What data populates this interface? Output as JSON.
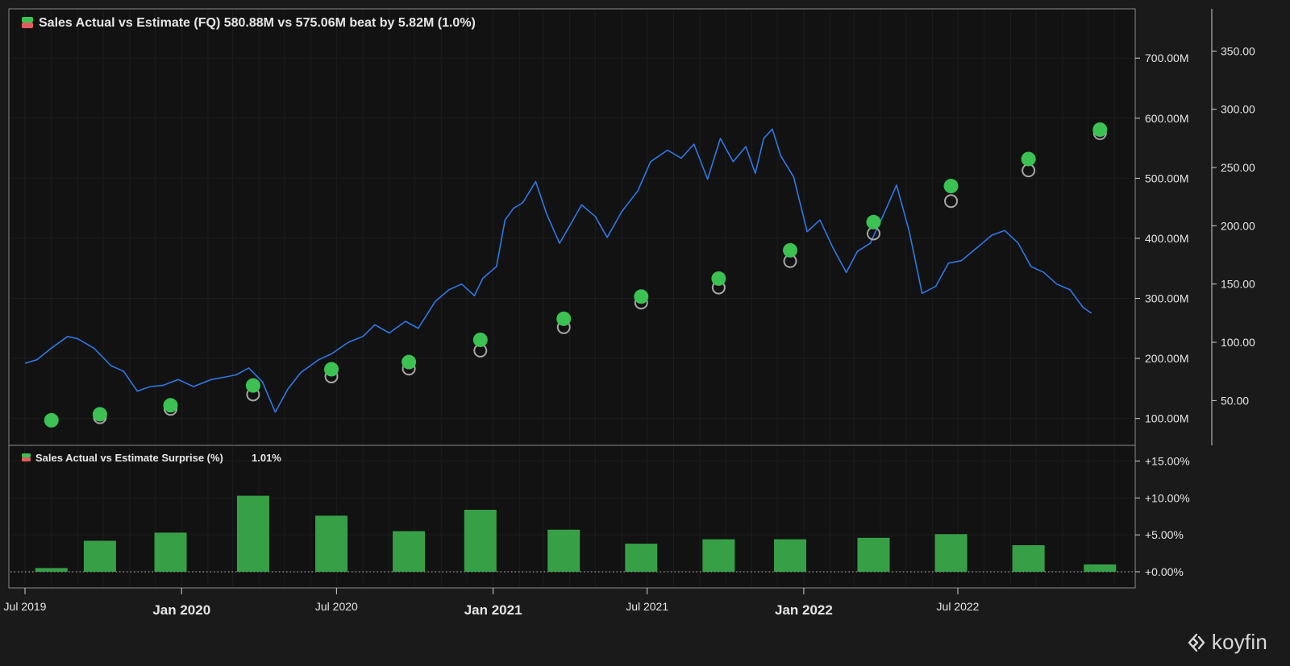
{
  "chart_data": [
    {
      "type": "line",
      "legend_title": "Sales Actual vs Estimate (FQ) 580.88M vs 575.06M beat by 5.82M (1.0%)",
      "sales_axis": {
        "ticks": [
          100,
          200,
          300,
          400,
          500,
          600,
          700
        ],
        "tick_labels": [
          "100.00M",
          "200.00M",
          "300.00M",
          "400.00M",
          "500.00M",
          "600.00M",
          "700.00M"
        ],
        "range": [
          62,
          770
        ]
      },
      "price_axis": {
        "ticks": [
          50,
          100,
          150,
          200,
          250,
          300,
          350
        ],
        "tick_labels": [
          "50.00",
          "100.00",
          "150.00",
          "200.00",
          "250.00",
          "300.00",
          "350.00"
        ],
        "range": [
          15,
          380
        ]
      },
      "x_axis": {
        "labels": [
          "Jul 2019",
          "Jan 2020",
          "Jul 2020",
          "Jan 2021",
          "Jul 2021",
          "Jan 2022",
          "Jul 2022"
        ],
        "bold_labels": [
          "Jan 2020",
          "Jan 2021",
          "Jan 2022"
        ]
      },
      "series": [
        {
          "kind": "price",
          "color": "#2f78e6",
          "points": [
            [
              "2019-07-01",
              82
            ],
            [
              "2019-07-15",
              85
            ],
            [
              "2019-08-01",
              95
            ],
            [
              "2019-08-20",
              105
            ],
            [
              "2019-09-01",
              103
            ],
            [
              "2019-09-20",
              95
            ],
            [
              "2019-10-10",
              80
            ],
            [
              "2019-10-25",
              75
            ],
            [
              "2019-11-10",
              58
            ],
            [
              "2019-11-25",
              62
            ],
            [
              "2019-12-10",
              63
            ],
            [
              "2019-12-28",
              68
            ],
            [
              "2020-01-15",
              62
            ],
            [
              "2020-02-05",
              68
            ],
            [
              "2020-02-20",
              70
            ],
            [
              "2020-03-05",
              72
            ],
            [
              "2020-03-20",
              78
            ],
            [
              "2020-04-05",
              66
            ],
            [
              "2020-04-20",
              40
            ],
            [
              "2020-05-05",
              60
            ],
            [
              "2020-05-20",
              74
            ],
            [
              "2020-06-10",
              85
            ],
            [
              "2020-06-25",
              90
            ],
            [
              "2020-07-15",
              100
            ],
            [
              "2020-08-01",
              105
            ],
            [
              "2020-08-15",
              115
            ],
            [
              "2020-09-01",
              108
            ],
            [
              "2020-09-20",
              118
            ],
            [
              "2020-10-05",
              112
            ],
            [
              "2020-10-25",
              135
            ],
            [
              "2020-11-10",
              145
            ],
            [
              "2020-11-25",
              150
            ],
            [
              "2020-12-10",
              140
            ],
            [
              "2020-12-20",
              155
            ],
            [
              "2021-01-05",
              165
            ],
            [
              "2021-01-15",
              205
            ],
            [
              "2021-01-25",
              215
            ],
            [
              "2021-02-05",
              220
            ],
            [
              "2021-02-20",
              238
            ],
            [
              "2021-03-05",
              210
            ],
            [
              "2021-03-20",
              185
            ],
            [
              "2021-04-01",
              200
            ],
            [
              "2021-04-15",
              218
            ],
            [
              "2021-05-01",
              208
            ],
            [
              "2021-05-15",
              190
            ],
            [
              "2021-06-01",
              212
            ],
            [
              "2021-06-20",
              230
            ],
            [
              "2021-07-05",
              255
            ],
            [
              "2021-07-25",
              265
            ],
            [
              "2021-08-10",
              258
            ],
            [
              "2021-08-25",
              270
            ],
            [
              "2021-09-10",
              240
            ],
            [
              "2021-09-25",
              275
            ],
            [
              "2021-10-10",
              255
            ],
            [
              "2021-10-25",
              268
            ],
            [
              "2021-11-05",
              245
            ],
            [
              "2021-11-15",
              275
            ],
            [
              "2021-11-25",
              283
            ],
            [
              "2021-12-05",
              260
            ],
            [
              "2021-12-20",
              242
            ],
            [
              "2022-01-05",
              195
            ],
            [
              "2022-01-20",
              205
            ],
            [
              "2022-02-05",
              180
            ],
            [
              "2022-02-20",
              160
            ],
            [
              "2022-03-05",
              178
            ],
            [
              "2022-03-20",
              185
            ],
            [
              "2022-04-05",
              210
            ],
            [
              "2022-04-20",
              235
            ],
            [
              "2022-05-05",
              195
            ],
            [
              "2022-05-20",
              142
            ],
            [
              "2022-06-05",
              148
            ],
            [
              "2022-06-20",
              168
            ],
            [
              "2022-07-05",
              170
            ],
            [
              "2022-07-25",
              182
            ],
            [
              "2022-08-10",
              192
            ],
            [
              "2022-08-25",
              196
            ],
            [
              "2022-09-10",
              185
            ],
            [
              "2022-09-25",
              165
            ],
            [
              "2022-10-10",
              160
            ],
            [
              "2022-10-25",
              150
            ],
            [
              "2022-11-10",
              145
            ],
            [
              "2022-11-25",
              130
            ],
            [
              "2022-12-05",
              125
            ]
          ]
        },
        {
          "kind": "estimate",
          "name": "Estimate",
          "color": "#a6a6a6",
          "points": [
            [
              "2019-08-01",
              97
            ],
            [
              "2019-09-27",
              102
            ],
            [
              "2019-12-19",
              116
            ],
            [
              "2020-03-25",
              140
            ],
            [
              "2020-06-25",
              170
            ],
            [
              "2020-09-24",
              183
            ],
            [
              "2020-12-17",
              213
            ],
            [
              "2021-03-25",
              252
            ],
            [
              "2021-06-24",
              293
            ],
            [
              "2021-09-23",
              318
            ],
            [
              "2021-12-16",
              362
            ],
            [
              "2022-03-24",
              408
            ],
            [
              "2022-06-23",
              462
            ],
            [
              "2022-09-22",
              513
            ],
            [
              "2022-12-15",
              575
            ]
          ]
        },
        {
          "kind": "actual",
          "name": "Actual",
          "color": "#3cc153",
          "points": [
            [
              "2019-08-01",
              97
            ],
            [
              "2019-09-27",
              107
            ],
            [
              "2019-12-19",
              122
            ],
            [
              "2020-03-25",
              155
            ],
            [
              "2020-06-25",
              182
            ],
            [
              "2020-09-24",
              194
            ],
            [
              "2020-12-17",
              231
            ],
            [
              "2021-03-25",
              266
            ],
            [
              "2021-06-24",
              303
            ],
            [
              "2021-09-23",
              333
            ],
            [
              "2021-12-16",
              380
            ],
            [
              "2022-03-24",
              427
            ],
            [
              "2022-06-23",
              487
            ],
            [
              "2022-09-22",
              532
            ],
            [
              "2022-12-15",
              581
            ]
          ]
        }
      ]
    },
    {
      "type": "bar",
      "legend_title": "Sales Actual vs Estimate Surprise (%)",
      "legend_value": "1.01%",
      "color": "#37a047",
      "y_axis": {
        "ticks": [
          0,
          5,
          10,
          15
        ],
        "tick_labels": [
          "+0.00%",
          "+5.00%",
          "+10.00%",
          "+15.00%"
        ],
        "range": [
          -1.2,
          16.8
        ]
      },
      "bars": [
        [
          "2019-08-01",
          0.5
        ],
        [
          "2019-09-27",
          4.2
        ],
        [
          "2019-12-19",
          5.3
        ],
        [
          "2020-03-25",
          10.3
        ],
        [
          "2020-06-25",
          7.6
        ],
        [
          "2020-09-24",
          5.5
        ],
        [
          "2020-12-17",
          8.4
        ],
        [
          "2021-03-25",
          5.7
        ],
        [
          "2021-06-24",
          3.8
        ],
        [
          "2021-09-23",
          4.4
        ],
        [
          "2021-12-16",
          4.4
        ],
        [
          "2022-03-24",
          4.6
        ],
        [
          "2022-06-23",
          5.1
        ],
        [
          "2022-09-22",
          3.6
        ],
        [
          "2022-12-15",
          1.0
        ]
      ]
    }
  ],
  "branding": {
    "logo_text": "koyfin"
  }
}
